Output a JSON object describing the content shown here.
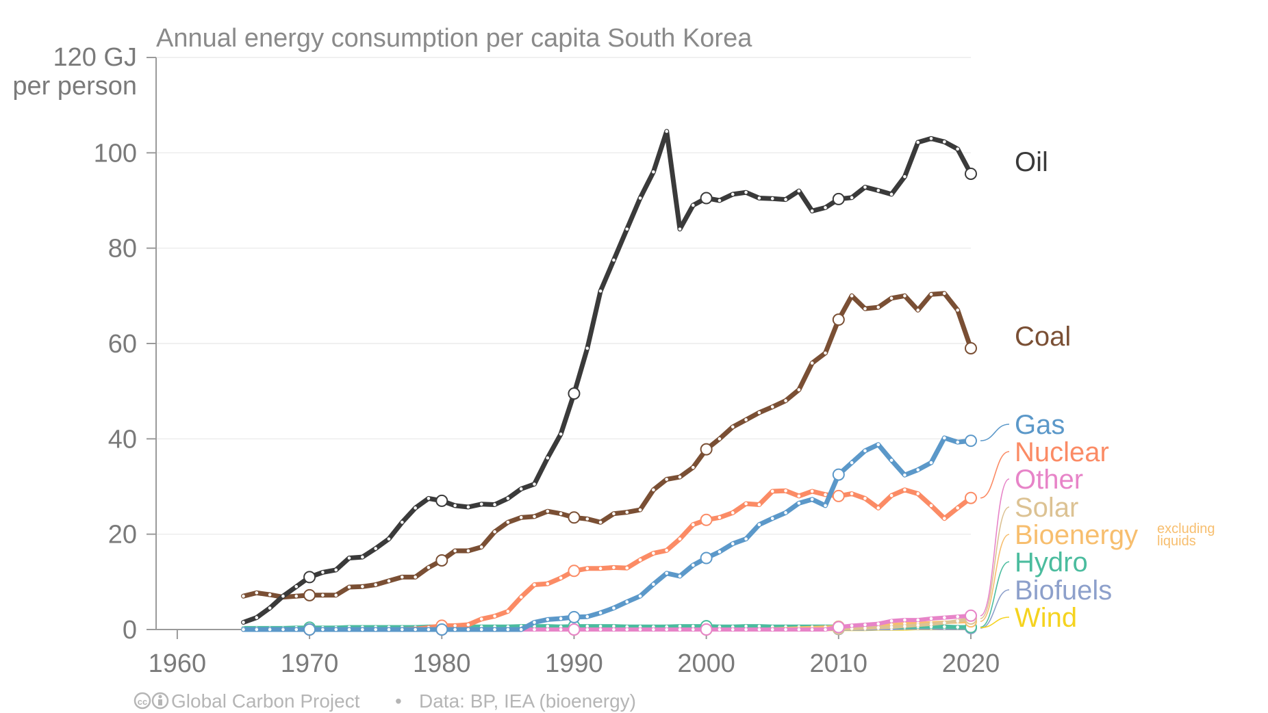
{
  "chart_data": {
    "type": "line",
    "title": "Annual energy consumption per capita South Korea",
    "y_unit_label": "120 GJ",
    "y_unit_label_2": "per person",
    "xlim": [
      1958,
      2020
    ],
    "ylim": [
      0,
      120
    ],
    "x_ticks": [
      1960,
      1970,
      1980,
      1990,
      2000,
      2010,
      2020
    ],
    "y_ticks": [
      0,
      20,
      40,
      60,
      80,
      100
    ],
    "grid": true,
    "legend": "right-end-labels",
    "highlight_years": [
      1970,
      1980,
      1990,
      2000,
      2010,
      2020
    ],
    "x": [
      1965,
      1966,
      1967,
      1968,
      1969,
      1970,
      1971,
      1972,
      1973,
      1974,
      1975,
      1976,
      1977,
      1978,
      1979,
      1980,
      1981,
      1982,
      1983,
      1984,
      1985,
      1986,
      1987,
      1988,
      1989,
      1990,
      1991,
      1992,
      1993,
      1994,
      1995,
      1996,
      1997,
      1998,
      1999,
      2000,
      2001,
      2002,
      2003,
      2004,
      2005,
      2006,
      2007,
      2008,
      2009,
      2010,
      2011,
      2012,
      2013,
      2014,
      2015,
      2016,
      2017,
      2018,
      2019,
      2020
    ],
    "series": [
      {
        "name": "Oil",
        "color": "#3a3a3a",
        "width": 7,
        "values": [
          1.5,
          2.5,
          4.5,
          7.0,
          9.0,
          11.0,
          12.0,
          12.5,
          15.0,
          15.2,
          17.0,
          19.0,
          22.5,
          25.5,
          27.5,
          27.0,
          26.0,
          25.7,
          26.3,
          26.2,
          27.5,
          29.5,
          30.5,
          36.0,
          41.0,
          49.5,
          59.0,
          71.0,
          77.5,
          84.0,
          90.5,
          96.0,
          104.5,
          84.0,
          89.0,
          90.5,
          90.0,
          91.3,
          91.7,
          90.5,
          90.4,
          90.2,
          92.0,
          87.8,
          88.5,
          90.3,
          90.6,
          92.8,
          92.1,
          91.3,
          95.0,
          102.2,
          103.0,
          102.3,
          100.8,
          95.6
        ]
      },
      {
        "name": "Coal",
        "color": "#7a4f34",
        "width": 7,
        "values": [
          7.0,
          7.7,
          7.3,
          6.8,
          7.0,
          7.2,
          7.2,
          7.2,
          8.9,
          9.0,
          9.4,
          10.2,
          11.0,
          11.0,
          13.0,
          14.5,
          16.5,
          16.5,
          17.3,
          20.5,
          22.5,
          23.5,
          23.7,
          24.8,
          24.3,
          23.5,
          23.2,
          22.5,
          24.3,
          24.6,
          25.1,
          29.3,
          31.5,
          32.0,
          34.0,
          37.8,
          40.0,
          42.5,
          44.0,
          45.5,
          46.7,
          48.0,
          50.3,
          55.9,
          58.0,
          65.0,
          70.0,
          67.3,
          67.6,
          69.5,
          70.0,
          67.0,
          70.3,
          70.5,
          67.0,
          59.0
        ]
      },
      {
        "name": "Gas",
        "color": "#5b98c9",
        "width": 7,
        "values": [
          0,
          0,
          0,
          0,
          0,
          0,
          0,
          0,
          0,
          0,
          0,
          0,
          0,
          0,
          0,
          0,
          0,
          0,
          0,
          0,
          0,
          0,
          1.5,
          2.1,
          2.3,
          2.6,
          2.7,
          3.5,
          4.5,
          5.8,
          7.0,
          9.5,
          11.8,
          11.2,
          13.5,
          15.0,
          16.3,
          18.0,
          19.0,
          22.0,
          23.3,
          24.5,
          26.5,
          27.3,
          26.0,
          32.5,
          35.0,
          37.5,
          38.8,
          35.5,
          32.4,
          33.5,
          35.0,
          40.2,
          39.3,
          39.6
        ]
      },
      {
        "name": "Nuclear",
        "color": "#fb8b65",
        "width": 7,
        "values": [
          0,
          0,
          0,
          0,
          0,
          0,
          0,
          0,
          0,
          0,
          0,
          0,
          0,
          0.1,
          0.4,
          0.8,
          0.8,
          1.0,
          2.2,
          2.8,
          3.8,
          6.8,
          9.4,
          9.6,
          10.8,
          12.3,
          12.8,
          12.8,
          13.0,
          12.9,
          14.6,
          16.0,
          16.6,
          19.0,
          22.0,
          23.0,
          23.5,
          24.5,
          26.4,
          26.2,
          29.0,
          29.1,
          28.0,
          29.0,
          28.3,
          28.0,
          28.5,
          27.5,
          25.5,
          28.1,
          29.3,
          28.5,
          26.0,
          23.3,
          25.5,
          27.6
        ]
      },
      {
        "name": "Other",
        "color": "#e784c8",
        "width": 6,
        "values": [
          0,
          0,
          0,
          0,
          0,
          0,
          0,
          0,
          0,
          0,
          0,
          0,
          0,
          0,
          0,
          0,
          0,
          0,
          0,
          0,
          0,
          0,
          0,
          0,
          0,
          0,
          0,
          0,
          0,
          0,
          0,
          0,
          0,
          0,
          0,
          0,
          0,
          0,
          0,
          0,
          0,
          0,
          0,
          0,
          0,
          0.5,
          0.8,
          1.0,
          1.2,
          1.8,
          2.0,
          2.0,
          2.3,
          2.5,
          2.7,
          2.9
        ]
      },
      {
        "name": "Solar",
        "color": "#dcc293",
        "width": 5,
        "values": [
          0,
          0,
          0,
          0,
          0,
          0,
          0,
          0,
          0,
          0,
          0,
          0,
          0,
          0,
          0,
          0,
          0,
          0,
          0,
          0,
          0,
          0,
          0,
          0,
          0,
          0,
          0,
          0,
          0,
          0,
          0,
          0,
          0,
          0,
          0,
          0,
          0,
          0,
          0,
          0,
          0,
          0,
          0,
          0.1,
          0.1,
          0.2,
          0.2,
          0.3,
          0.4,
          0.5,
          0.7,
          0.9,
          1.1,
          1.4,
          1.8,
          2.3
        ]
      },
      {
        "name": "Bioenergy",
        "color": "#f7be6e",
        "width": 5,
        "note": "excluding liquids",
        "values": [
          0,
          0,
          0,
          0,
          0,
          0,
          0,
          0,
          0,
          0,
          0,
          0,
          0,
          0,
          0,
          0,
          0,
          0,
          0,
          0,
          0,
          0,
          0,
          0,
          0,
          0,
          0,
          0,
          0,
          0,
          0,
          0,
          0,
          0,
          0,
          0,
          0,
          0,
          0,
          0,
          0.1,
          0.2,
          0.3,
          0.4,
          0.5,
          0.6,
          0.7,
          0.8,
          0.9,
          1.0,
          1.2,
          1.3,
          1.4,
          1.5,
          1.6,
          1.7
        ]
      },
      {
        "name": "Hydro",
        "color": "#4bbc9e",
        "width": 6,
        "values": [
          0.3,
          0.3,
          0.3,
          0.3,
          0.4,
          0.4,
          0.4,
          0.4,
          0.5,
          0.5,
          0.5,
          0.5,
          0.5,
          0.5,
          0.6,
          0.6,
          0.6,
          0.6,
          0.6,
          0.6,
          0.6,
          0.7,
          0.7,
          0.7,
          0.6,
          0.7,
          0.7,
          0.7,
          0.7,
          0.6,
          0.6,
          0.6,
          0.6,
          0.7,
          0.7,
          0.7,
          0.6,
          0.6,
          0.7,
          0.7,
          0.6,
          0.6,
          0.6,
          0.6,
          0.6,
          0.6,
          0.6,
          0.6,
          0.6,
          0.6,
          0.5,
          0.6,
          0.6,
          0.6,
          0.5,
          0.5
        ]
      },
      {
        "name": "Biofuels",
        "color": "#8da0cb",
        "width": 5,
        "values": [
          0,
          0,
          0,
          0,
          0,
          0,
          0,
          0,
          0,
          0,
          0,
          0,
          0,
          0,
          0,
          0,
          0,
          0,
          0,
          0,
          0,
          0,
          0,
          0,
          0,
          0,
          0,
          0,
          0,
          0,
          0,
          0,
          0,
          0,
          0,
          0,
          0,
          0,
          0,
          0,
          0,
          0,
          0,
          0,
          0.1,
          0.1,
          0.1,
          0.1,
          0.2,
          0.2,
          0.3,
          0.3,
          0.3,
          0.3,
          0.3,
          0.3
        ]
      },
      {
        "name": "Wind",
        "color": "#f5d31f",
        "width": 6,
        "values": [
          0,
          0,
          0,
          0,
          0,
          0,
          0,
          0,
          0,
          0,
          0,
          0,
          0,
          0,
          0,
          0,
          0,
          0,
          0,
          0,
          0,
          0,
          0,
          0,
          0,
          0,
          0,
          0,
          0,
          0,
          0,
          0,
          0,
          0,
          0,
          0,
          0,
          0,
          0,
          0,
          0,
          0,
          0.1,
          0.1,
          0.1,
          0.1,
          0.1,
          0.1,
          0.2,
          0.2,
          0.2,
          0.3,
          0.3,
          0.4,
          0.4,
          0.4
        ]
      }
    ]
  },
  "footer": {
    "icons": [
      "creative-commons-icon",
      "attribution-icon"
    ],
    "org": "Global Carbon Project",
    "separator": "•",
    "source": "Data: BP, IEA (bioenergy)"
  }
}
